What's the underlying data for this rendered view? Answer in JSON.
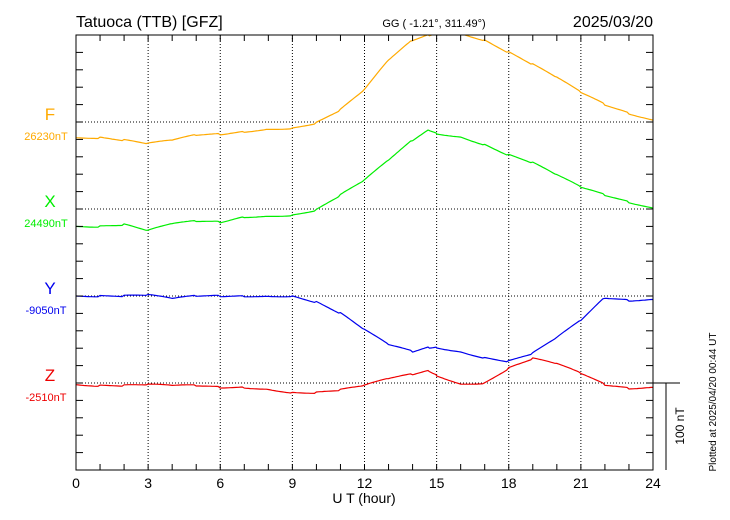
{
  "chart_data": {
    "type": "line",
    "title": "Tatuoca (TTB)  [GFZ]",
    "coords": "GG ( -1.21°, 311.49°)",
    "date": "2025/03/20",
    "xlabel": "U T (hour)",
    "xlim": [
      0,
      24
    ],
    "xticks": [
      "0",
      "3",
      "6",
      "9",
      "12",
      "15",
      "18",
      "21",
      "24"
    ],
    "scale_label": "100 nT",
    "scale_nT": 100,
    "footer": "Plotted at 2025/04/20 00:44 UT",
    "hours": [
      0,
      1,
      2,
      3,
      4,
      5,
      6,
      7,
      8,
      9,
      10,
      11,
      12,
      13,
      14,
      14.7,
      15,
      16,
      17,
      18,
      19,
      20,
      21,
      22,
      23,
      24
    ],
    "series": [
      {
        "name": "F",
        "baseline_label": "26230nT",
        "baseline": 26230,
        "color": "#ffaa00",
        "offsets": [
          -18,
          -18,
          -21,
          -25,
          -21,
          -15,
          -14,
          -11,
          -8,
          -7,
          -1,
          14,
          37,
          71,
          94,
          100,
          102,
          102,
          94,
          80,
          66,
          51,
          34,
          20,
          10,
          2
        ]
      },
      {
        "name": "X",
        "baseline_label": "24490nT",
        "baseline": 24490,
        "color": "#00ee00",
        "offsets": [
          -20,
          -20,
          -18,
          -25,
          -17,
          -14,
          -15,
          -9,
          -8,
          -7,
          -1,
          16,
          33,
          56,
          79,
          91,
          87,
          83,
          74,
          62,
          53,
          39,
          25,
          16,
          8,
          1
        ]
      },
      {
        "name": "Y",
        "baseline_label": "-9050nT",
        "baseline": -9050,
        "color": "#0000ee",
        "offsets": [
          0,
          0,
          0,
          1,
          -3,
          0,
          0,
          0,
          0,
          0,
          -7,
          -20,
          -39,
          -56,
          -64,
          -59,
          -59,
          -64,
          -71,
          -75,
          -66,
          -48,
          -28,
          -2,
          -5,
          -4
        ]
      },
      {
        "name": "Z",
        "baseline_label": "-2510nT",
        "baseline": -2510,
        "color": "#ee0000",
        "offsets": [
          -2,
          -3,
          -3,
          -2,
          -3,
          -3,
          -5,
          -5,
          -7,
          -11,
          -11,
          -8,
          -3,
          5,
          10,
          14,
          9,
          -1,
          0,
          17,
          28,
          22,
          11,
          -2,
          -6,
          -5
        ]
      }
    ]
  }
}
